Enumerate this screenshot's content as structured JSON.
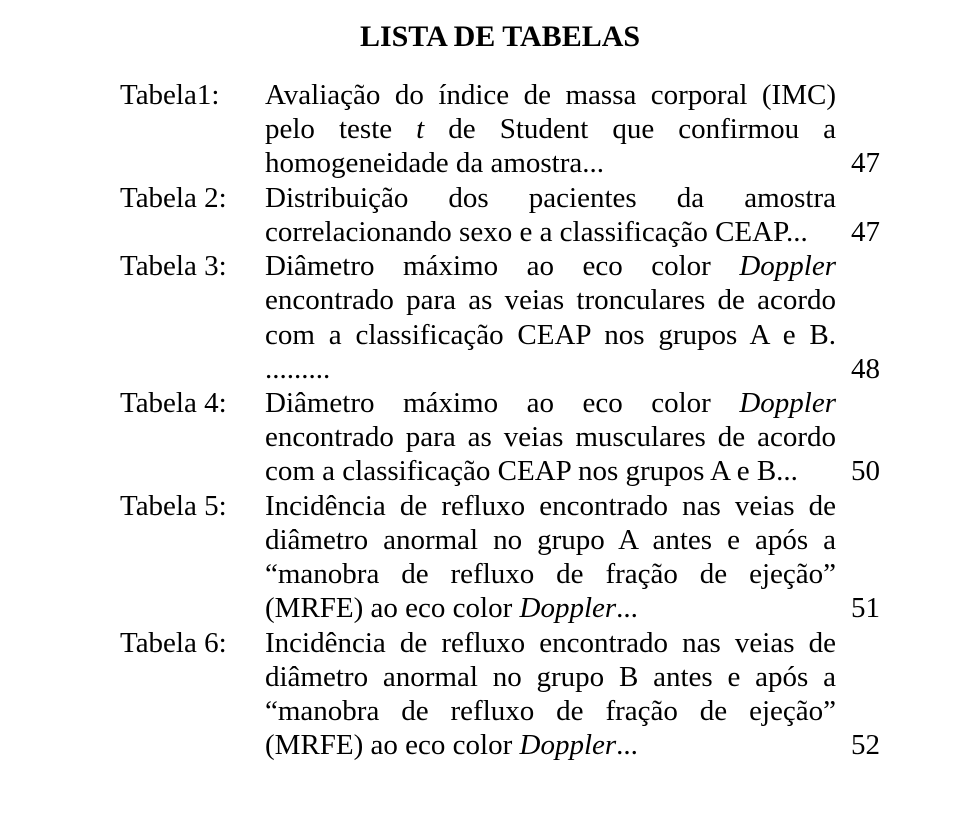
{
  "title": "LISTA DE TABELAS",
  "entries": [
    {
      "label": "Tabela1:",
      "segments": [
        {
          "t": "Avaliação do índice de massa corporal (IMC) pelo teste "
        },
        {
          "t": "t",
          "italic": true
        },
        {
          "t": " de Student que confirmou a homogeneidade da amostra..."
        }
      ],
      "page": "47"
    },
    {
      "label": "Tabela 2:",
      "segments": [
        {
          "t": "Distribuição dos pacientes da amostra correlacionando sexo e a classificação CEAP..."
        }
      ],
      "page": "47"
    },
    {
      "label": "Tabela 3:",
      "segments": [
        {
          "t": "Diâmetro máximo ao eco color "
        },
        {
          "t": "Doppler",
          "italic": true
        },
        {
          "t": " encontrado para as veias tronculares de acordo com a classificação CEAP nos grupos A e B. ........."
        }
      ],
      "page": "48"
    },
    {
      "label": "Tabela 4:",
      "segments": [
        {
          "t": "Diâmetro máximo ao eco color "
        },
        {
          "t": "Doppler",
          "italic": true
        },
        {
          "t": " encontrado para as veias musculares de acordo com a classificação CEAP nos grupos A e B..."
        }
      ],
      "page": "50"
    },
    {
      "label": "Tabela 5:",
      "segments": [
        {
          "t": "Incidência de refluxo encontrado nas veias de diâmetro anormal no grupo A antes e após a “manobra de refluxo de fração de ejeção” (MRFE) ao eco color "
        },
        {
          "t": "Doppler",
          "italic": true
        },
        {
          "t": "..."
        }
      ],
      "page": "51"
    },
    {
      "label": "Tabela 6:",
      "segments": [
        {
          "t": "Incidência de refluxo encontrado nas veias de diâmetro anormal no grupo B antes e após a “manobra de refluxo de fração de ejeção” (MRFE) ao eco color "
        },
        {
          "t": "Doppler",
          "italic": true
        },
        {
          "t": "..."
        }
      ],
      "page": "52"
    }
  ]
}
